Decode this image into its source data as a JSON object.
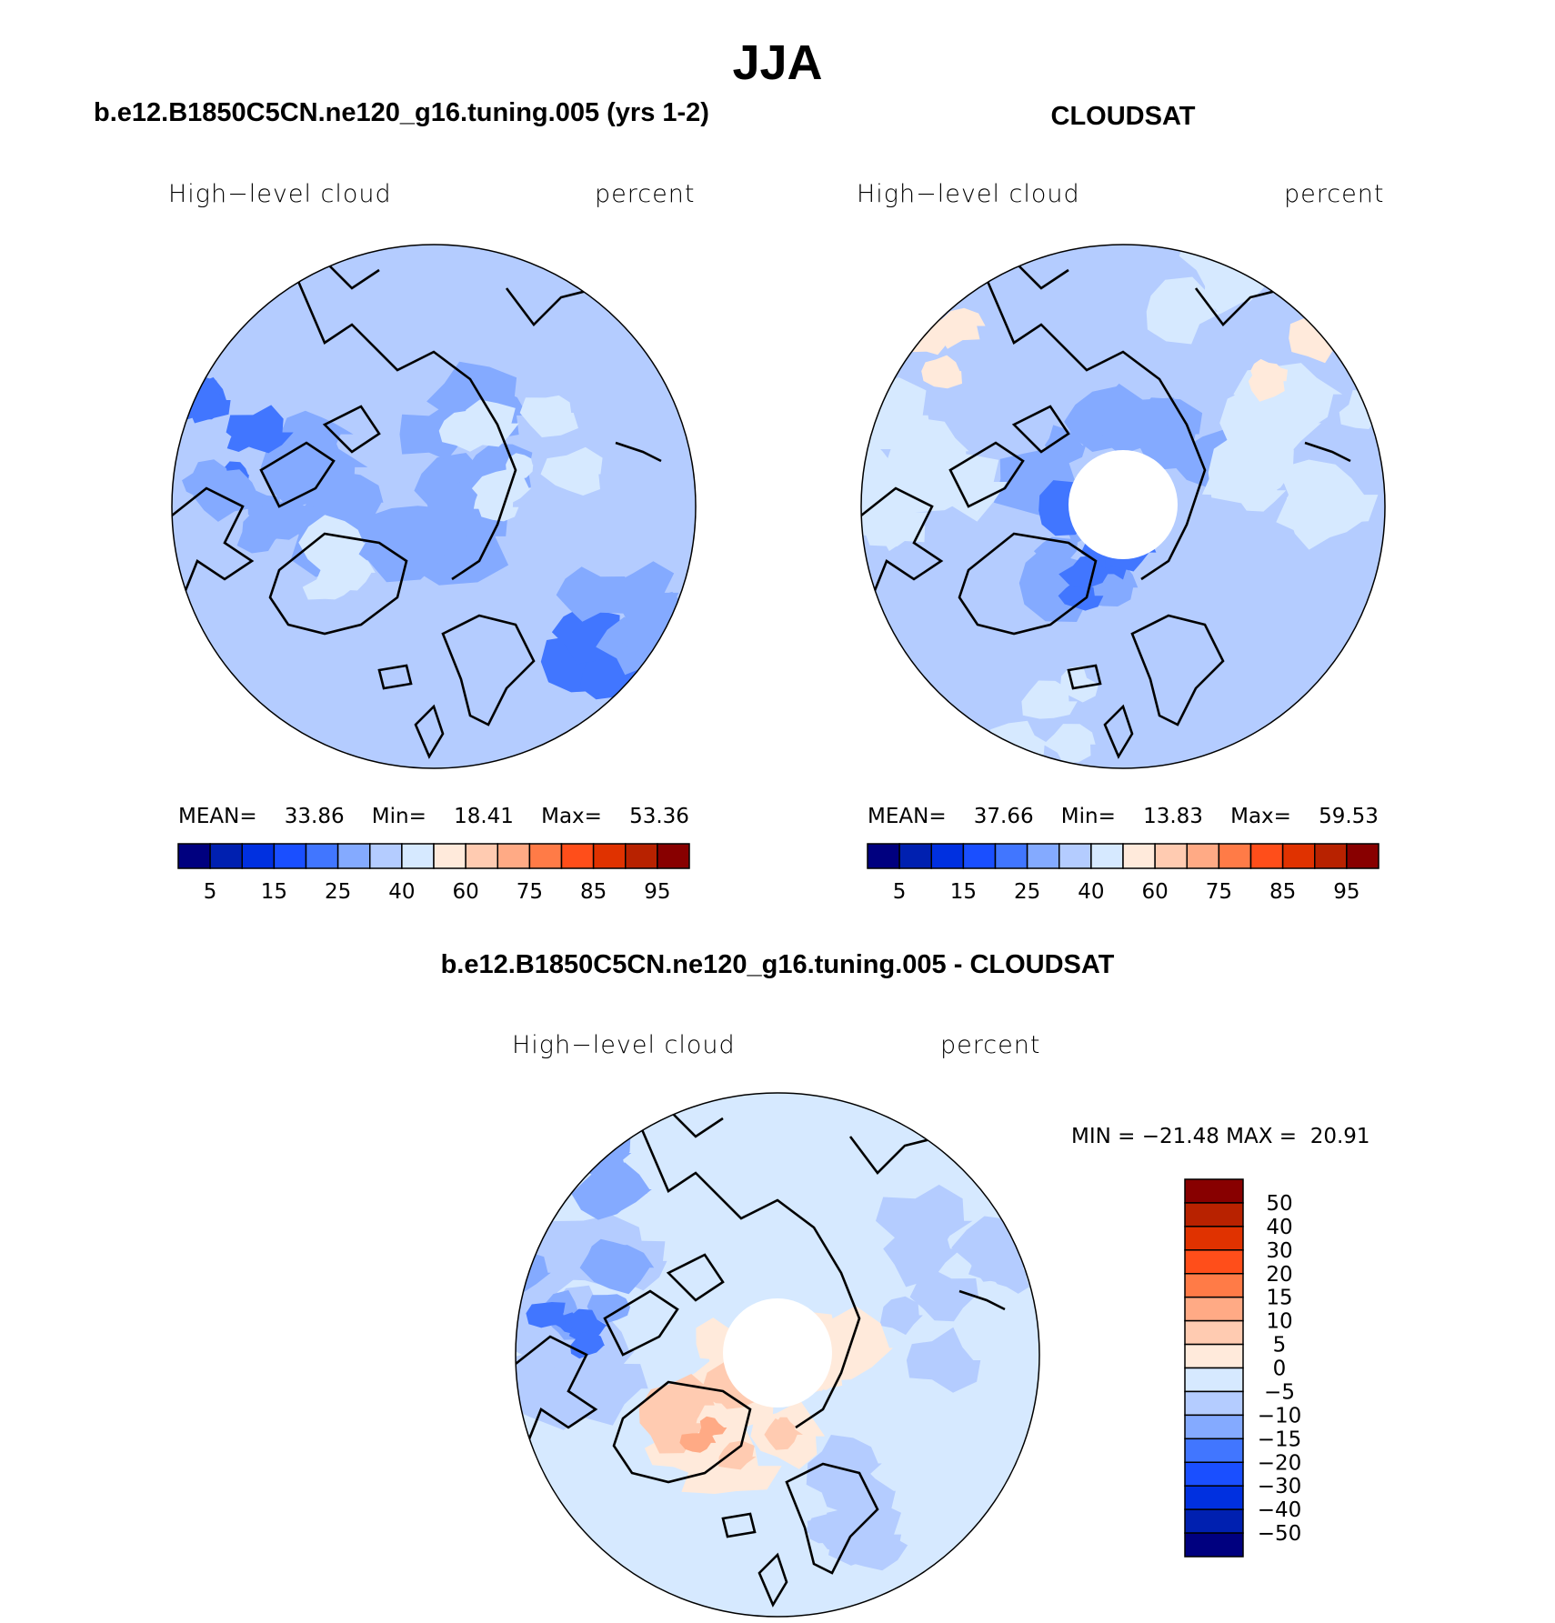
{
  "title": "JJA",
  "panels": [
    {
      "subtitle": "b.e12.B1850C5CN.ne120_g16.tuning.005 (yrs 1-2)",
      "left_label": "High−level cloud",
      "right_label": "percent",
      "stats": {
        "mean_label": "MEAN=",
        "mean": "33.86",
        "min_label": "Min=",
        "min": "18.41",
        "max_label": "Max=",
        "max": "53.36"
      }
    },
    {
      "subtitle": "CLOUDSAT",
      "left_label": "High−level cloud",
      "right_label": "percent",
      "stats": {
        "mean_label": "MEAN=",
        "mean": "37.66",
        "min_label": "Min=",
        "min": "13.83",
        "max_label": "Max=",
        "max": "59.53"
      }
    },
    {
      "subtitle": "b.e12.B1850C5CN.ne120_g16.tuning.005 - CLOUDSAT",
      "left_label": "High−level cloud",
      "right_label": "percent",
      "minmax": "MIN = −21.48 MAX =  20.91"
    }
  ],
  "chart_data": {
    "type": "heatmap",
    "projection": "north polar stereographic",
    "season": "JJA",
    "variable": "High-level cloud",
    "units": "percent",
    "colors": [
      "#00007f",
      "#0020b0",
      "#0030e0",
      "#1a4fff",
      "#4176ff",
      "#84aaff",
      "#b4ccff",
      "#d6e9ff",
      "#ffeadb",
      "#ffcbb1",
      "#ffaa85",
      "#ff7b47",
      "#ff4e1a",
      "#e03200",
      "#b82200",
      "#880000"
    ],
    "abs_levels": [
      5,
      10,
      15,
      20,
      25,
      30,
      40,
      50,
      60,
      70,
      75,
      80,
      85,
      90,
      95
    ],
    "abs_tick_labels": [
      "5",
      "15",
      "25",
      "40",
      "60",
      "75",
      "85",
      "95"
    ],
    "diff_levels": [
      "−50",
      "−40",
      "−30",
      "−20",
      "−15",
      "−10",
      "−5",
      "0",
      "5",
      "10",
      "15",
      "20",
      "30",
      "40",
      "50"
    ],
    "model_stats": {
      "mean": 33.86,
      "min": 18.41,
      "max": 53.36
    },
    "obs_stats": {
      "mean": 37.66,
      "min": 13.83,
      "max": 59.53
    },
    "diff_stats": {
      "min": -21.48,
      "max": 20.91
    }
  }
}
